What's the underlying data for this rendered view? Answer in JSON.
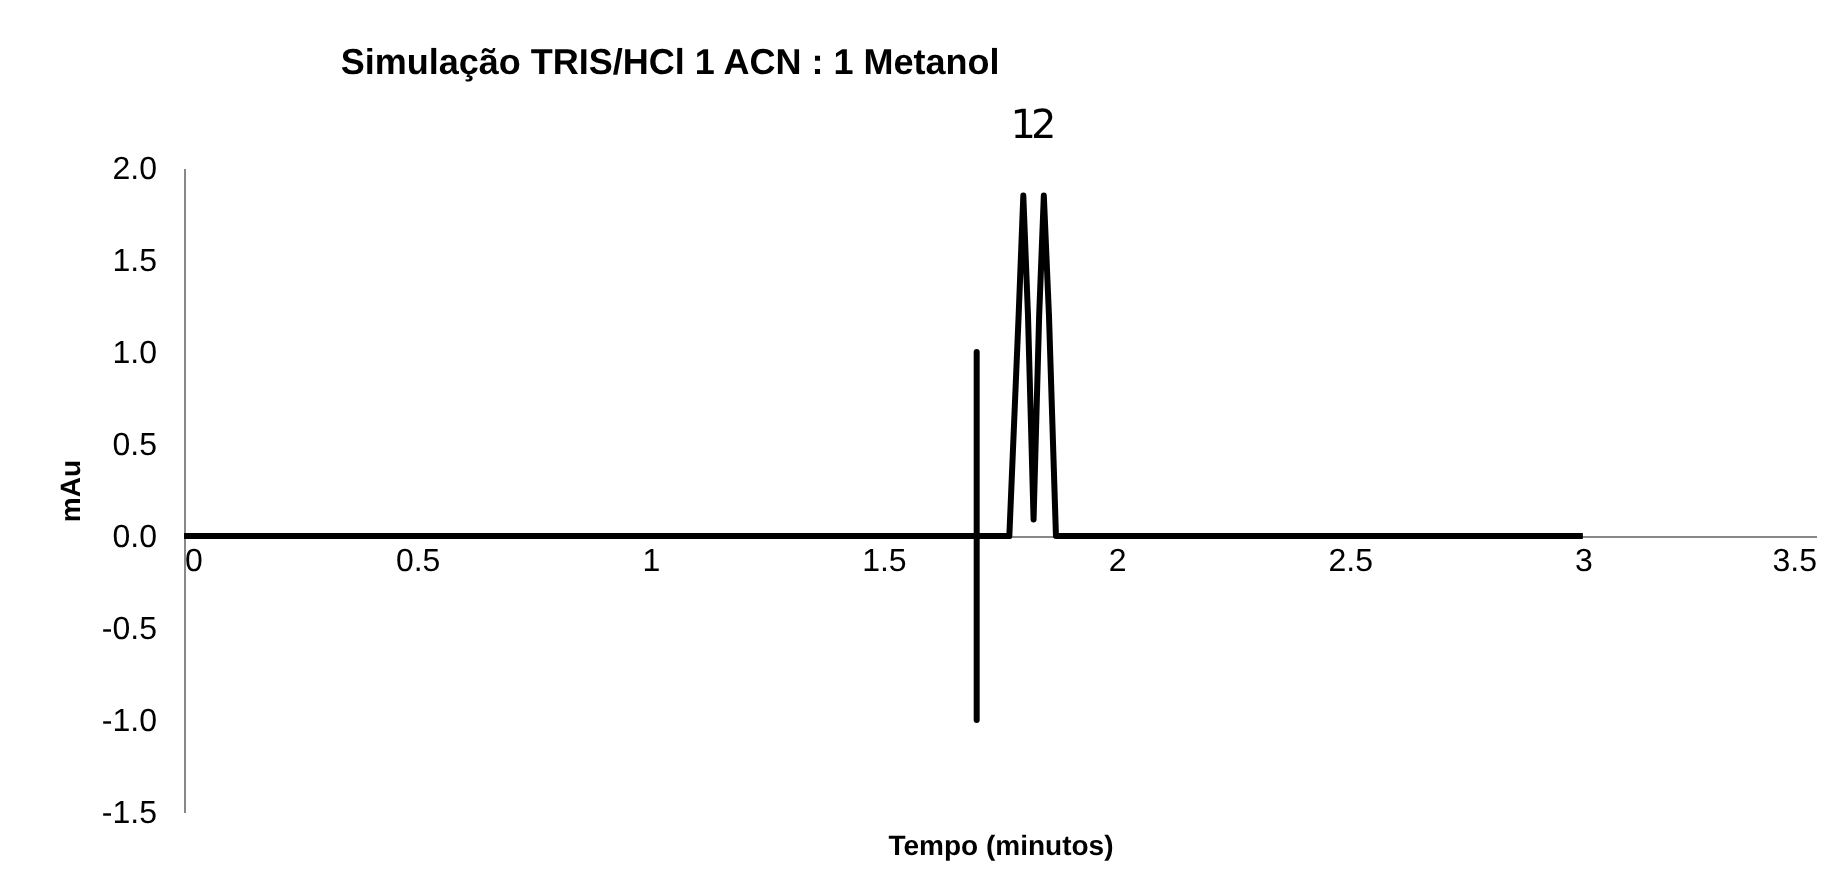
{
  "chart_data": {
    "type": "line",
    "title": "Simulação TRIS/HCl  1 ACN : 1 Metanol",
    "xlabel": "Tempo (minutos)",
    "ylabel": "mAu",
    "xlim": [
      0,
      3.5
    ],
    "xticks": [
      0,
      0.5,
      1,
      1.5,
      2,
      2.5,
      3,
      3.5
    ],
    "ylim": [
      -1.5,
      2.0
    ],
    "yticks": [
      {
        "value": 2.0,
        "label": "2.0"
      },
      {
        "value": 1.5,
        "label": "1.5"
      },
      {
        "value": 1.0,
        "label": "1.0"
      },
      {
        "value": 0.5,
        "label": "0.5"
      },
      {
        "value": 0.0,
        "label": "0.0"
      },
      {
        "value": -0.5,
        "label": "-0.5"
      },
      {
        "value": -1.0,
        "label": "-1.0"
      },
      {
        "value": -1.5,
        "label": "-1.5"
      }
    ],
    "grid": false,
    "marker": "none",
    "line_style": "solid",
    "annotations": [
      {
        "text": "1",
        "x": 1.8,
        "y": 1.85
      },
      {
        "text": "2",
        "x": 1.844,
        "y": 1.85
      }
    ],
    "series": [
      {
        "color": "#000000",
        "x": [
          0,
          1.7,
          1.7,
          1.7,
          1.7,
          1.77,
          1.79,
          1.8,
          1.81,
          1.822,
          1.834,
          1.844,
          1.855,
          1.87,
          3
        ],
        "values": [
          0,
          0,
          1.0,
          -1.0,
          0,
          0,
          1.2,
          1.85,
          1.2,
          0.09,
          1.2,
          1.85,
          1.2,
          0,
          0
        ]
      }
    ]
  }
}
